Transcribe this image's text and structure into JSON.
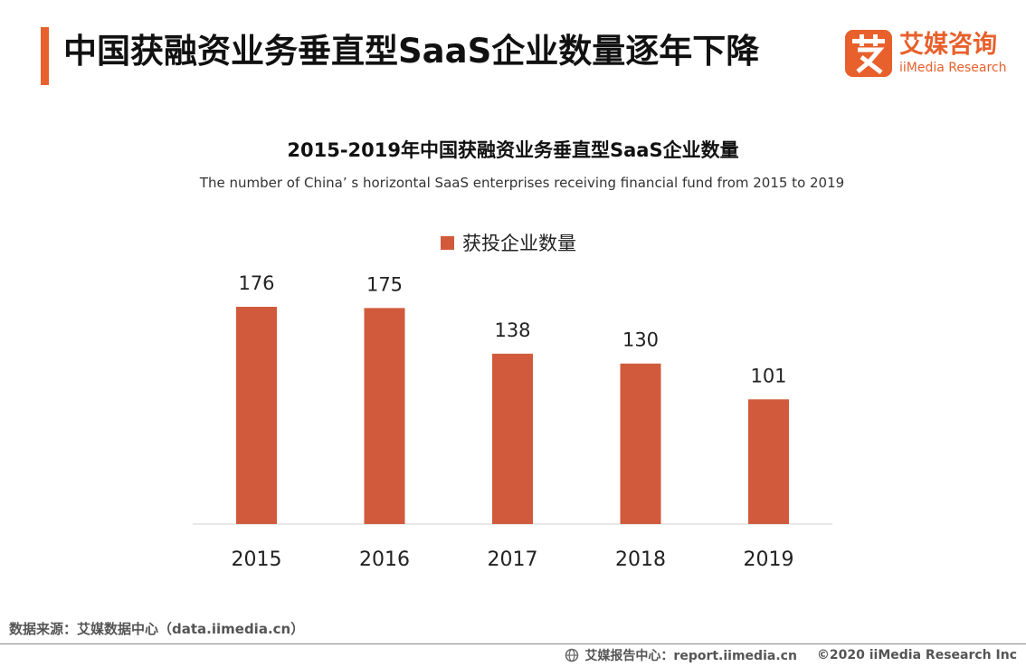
{
  "header": {
    "title": "中国获融资业务垂直型SaaS企业数量逐年下降",
    "accent_color": "#e8602c"
  },
  "logo": {
    "mark_char": "艾",
    "name": "艾媒咨询",
    "subname": "iiMedia Research",
    "color": "#e8602c"
  },
  "chart_data": {
    "type": "bar",
    "title": "2015-2019年中国获融资业务垂直型SaaS企业数量",
    "subtitle": "The number of China’ s horizontal SaaS enterprises receiving financial fund from 2015 to 2019",
    "categories": [
      "2015",
      "2016",
      "2017",
      "2018",
      "2019"
    ],
    "series": [
      {
        "name": "获投企业数量",
        "values": [
          176,
          175,
          138,
          130,
          101
        ],
        "color": "#d05a3b"
      }
    ],
    "xlabel": "",
    "ylabel": "",
    "ylim": [
      0,
      180
    ],
    "grid": false,
    "legend_position": "top-center",
    "data_labels": true
  },
  "footer": {
    "source": "数据来源：艾媒数据中心（data.iimedia.cn）",
    "report_center": "艾媒报告中心：report.iimedia.cn",
    "copyright": "©2020  iiMedia Research  Inc"
  }
}
